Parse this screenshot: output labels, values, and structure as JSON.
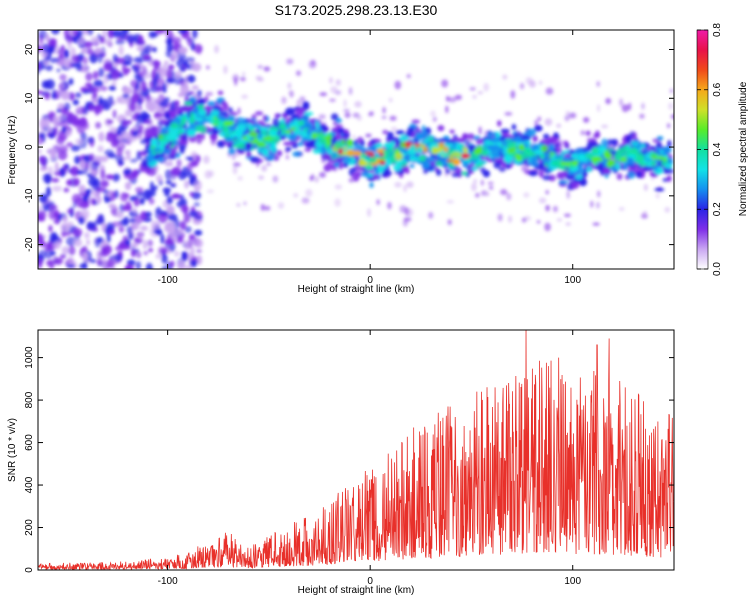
{
  "figure_title": "S173.2025.298.23.13.E30",
  "chart_data": [
    {
      "type": "heatmap",
      "title": "S173.2025.298.23.13.E30",
      "xlabel": "Height of straight line (km)",
      "ylabel": "Frequency (Hz)",
      "xlim": [
        -164,
        150
      ],
      "ylim": [
        -25,
        24
      ],
      "xticks": [
        -100,
        0,
        100
      ],
      "xtick_labels": [
        "-100",
        "0",
        "100"
      ],
      "yticks": [
        20,
        10,
        0,
        -10,
        -20
      ],
      "ytick_labels": [
        "20",
        "10",
        "0",
        "-10",
        "-20"
      ],
      "ridge": {
        "name": "dominant frequency band",
        "x": [
          -110,
          -100,
          -90,
          -80,
          -70,
          -60,
          -50,
          -40,
          -30,
          -20,
          -10,
          0,
          10,
          20,
          30,
          40,
          50,
          60,
          70,
          80,
          90,
          100,
          110,
          120,
          130,
          140,
          148
        ],
        "y": [
          -2,
          2,
          6,
          6,
          4,
          2,
          1,
          4,
          3,
          1,
          -1,
          -3,
          -2,
          0,
          0,
          -1,
          -2,
          0,
          0,
          -1,
          -2,
          -4,
          -1,
          -2,
          -2,
          -3,
          -2
        ]
      },
      "colorbar": {
        "label": "Normalized spectral amplitude",
        "range": [
          0.0,
          0.8
        ],
        "ticks": [
          0.0,
          0.2,
          0.4,
          0.6,
          0.8
        ],
        "tick_labels": [
          "0.0",
          "0.2",
          "0.4",
          "0.6",
          "0.8"
        ],
        "colors": [
          "#ffffff",
          "#c9a6f2",
          "#7e2ee8",
          "#2a24e6",
          "#1590f0",
          "#12e2e6",
          "#12e0a0",
          "#58ec2a",
          "#cfe02a",
          "#f6a81a",
          "#f04a1a",
          "#e8124a",
          "#f01aa8"
        ]
      }
    },
    {
      "type": "line",
      "xlabel": "Height of straight line (km)",
      "ylabel": "SNR (10 * v/v)",
      "xlim": [
        -164,
        150
      ],
      "ylim": [
        0,
        1130
      ],
      "xticks": [
        -100,
        0,
        100
      ],
      "xtick_labels": [
        "-100",
        "0",
        "100"
      ],
      "yticks": [
        0,
        200,
        400,
        600,
        800,
        1000
      ],
      "ytick_labels": [
        "0",
        "200",
        "400",
        "600",
        "800",
        "1000"
      ],
      "series": [
        {
          "name": "SNR",
          "color": "#e8302a",
          "envelope_x": [
            -164,
            -120,
            -100,
            -90,
            -80,
            -70,
            -60,
            -50,
            -40,
            -30,
            -20,
            -10,
            0,
            10,
            20,
            30,
            40,
            50,
            60,
            70,
            80,
            90,
            100,
            110,
            120,
            130,
            140,
            150
          ],
          "envelope_y": [
            30,
            40,
            60,
            90,
            130,
            180,
            110,
            160,
            210,
            250,
            330,
            420,
            480,
            560,
            650,
            700,
            760,
            820,
            870,
            930,
            1000,
            960,
            940,
            920,
            900,
            840,
            760,
            700
          ],
          "peaks": [
            {
              "x": 77,
              "y": 1130
            },
            {
              "x": 118,
              "y": 1090
            },
            {
              "x": 112,
              "y": 1060
            },
            {
              "x": 93,
              "y": 1000
            },
            {
              "x": 88,
              "y": 960
            }
          ]
        }
      ]
    }
  ]
}
